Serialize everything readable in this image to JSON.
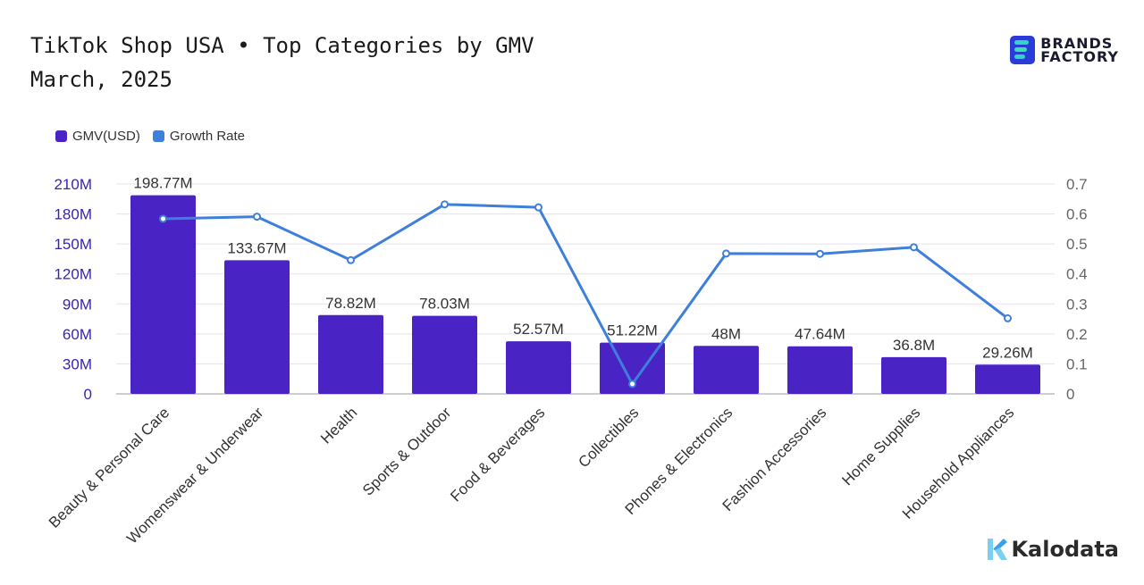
{
  "header": {
    "title": "TikTok Shop USA • Top Categories by GMV",
    "subtitle": "March, 2025"
  },
  "brand": {
    "line1": "BRANDS",
    "line2": "FACTORY"
  },
  "footer_brand": "Kalodata",
  "legend": {
    "series1": "GMV(USD)",
    "series2": "Growth Rate"
  },
  "colors": {
    "bar": "#4a23c5",
    "line": "#3f7fdc",
    "left_axis_text": "#3b1fb0",
    "right_axis_text": "#666666",
    "grid": "#e3e3ec"
  },
  "chart_data": {
    "type": "bar",
    "categories": [
      "Beauty & Personal Care",
      "Womenswear & Underwear",
      "Health",
      "Sports & Outdoor",
      "Food & Beverages",
      "Collectibles",
      "Phones & Electronics",
      "Fashion Accessories",
      "Home Supplies",
      "Household Appliances"
    ],
    "series": [
      {
        "name": "GMV(USD)",
        "type": "bar",
        "axis": "left",
        "values": [
          198.77,
          133.67,
          78.82,
          78.03,
          52.57,
          51.22,
          48,
          47.64,
          36.8,
          29.26
        ],
        "labels": [
          "198.77M",
          "133.67M",
          "78.82M",
          "78.03M",
          "52.57M",
          "51.22M",
          "48M",
          "47.64M",
          "36.8M",
          "29.26M"
        ]
      },
      {
        "name": "Growth Rate",
        "type": "line",
        "axis": "right",
        "values": [
          0.584,
          0.591,
          0.446,
          0.632,
          0.622,
          0.033,
          0.468,
          0.467,
          0.489,
          0.252
        ]
      }
    ],
    "left_axis": {
      "ylim": [
        0,
        210
      ],
      "ticks": [
        0,
        30,
        60,
        90,
        120,
        150,
        180,
        210
      ],
      "tick_labels": [
        "0",
        "30M",
        "60M",
        "90M",
        "120M",
        "150M",
        "180M",
        "210M"
      ]
    },
    "right_axis": {
      "ylim": [
        0,
        0.7
      ],
      "ticks": [
        0,
        0.1,
        0.2,
        0.3,
        0.4,
        0.5,
        0.6,
        0.7
      ],
      "tick_labels": [
        "0",
        "0.1",
        "0.2",
        "0.3",
        "0.4",
        "0.5",
        "0.6",
        "0.7"
      ]
    },
    "grid": true,
    "legend_position": "top-left"
  }
}
